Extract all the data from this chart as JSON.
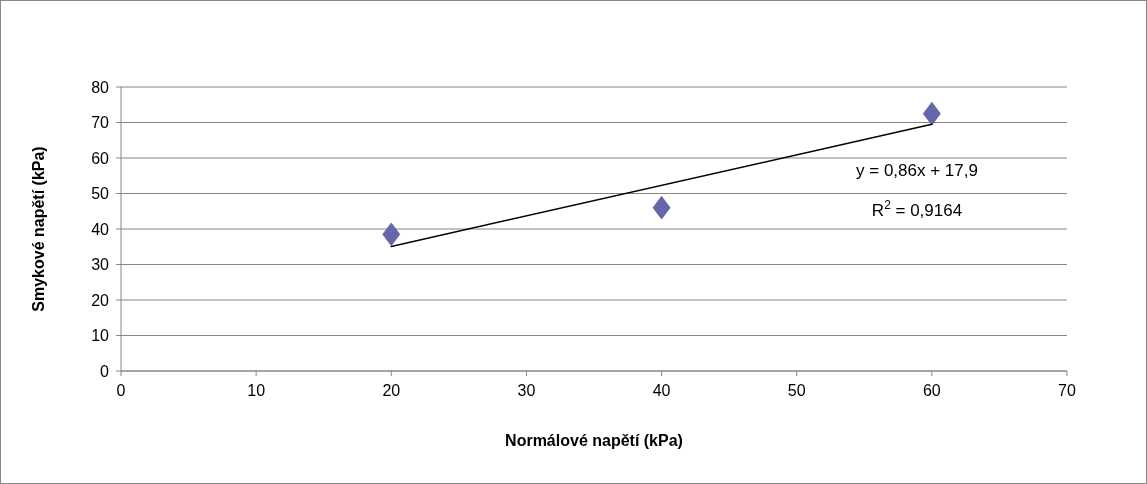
{
  "chart_data": {
    "type": "scatter",
    "xlabel": "Normálové napětí (kPa)",
    "ylabel": "Smykové napětí (kPa)",
    "series": [
      {
        "x": [
          20,
          40,
          60
        ],
        "values": [
          38.5,
          46,
          72.5
        ],
        "color": "#6667ab",
        "marker": "diamond"
      },
      {
        "type": "line",
        "x": [
          20,
          60
        ],
        "values": [
          35.1,
          69.5
        ],
        "color": "#000000",
        "marker": "none",
        "line_style": "solid"
      }
    ],
    "xlim": [
      0,
      70
    ],
    "xticks": [
      0,
      10,
      20,
      30,
      40,
      50,
      60,
      70
    ],
    "ylim": [
      0,
      80
    ],
    "yticks": [
      0,
      10,
      20,
      30,
      40,
      50,
      60,
      70,
      80
    ],
    "grid": "y",
    "annotations": [
      "y = 0,86x + 17,9",
      "R$^{2}$ = 0,9164"
    ]
  }
}
